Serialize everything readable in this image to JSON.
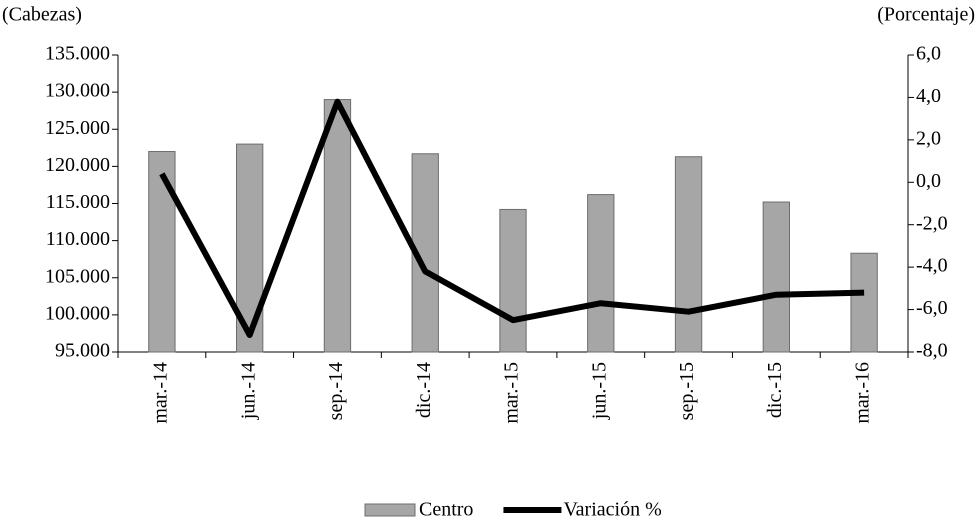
{
  "chart_data": {
    "type": "bar-line",
    "y_axis_label": "(Cabezas)",
    "y2_axis_label": "(Porcentaje)",
    "categories": [
      "mar.-14",
      "jun.-14",
      "sep.-14",
      "dic.-14",
      "mar.-15",
      "jun.-15",
      "sep.-15",
      "dic.-15",
      "mar.-16"
    ],
    "series": [
      {
        "name": "Centro",
        "type": "bar",
        "color": "#a6a6a6",
        "values": [
          122000,
          123000,
          129000,
          121700,
          114200,
          116200,
          121300,
          115200,
          108300
        ]
      },
      {
        "name": "Variación %",
        "type": "line",
        "axis": "y2",
        "color": "#000000",
        "values": [
          0.4,
          -7.2,
          3.8,
          -4.2,
          -6.5,
          -5.7,
          -6.1,
          -5.3,
          -5.2
        ]
      }
    ],
    "ylim": [
      95000,
      135000
    ],
    "yticks": [
      {
        "value": 95000,
        "label": "95.000"
      },
      {
        "value": 100000,
        "label": "100.000"
      },
      {
        "value": 105000,
        "label": "105.000"
      },
      {
        "value": 110000,
        "label": "110.000"
      },
      {
        "value": 115000,
        "label": "115.000"
      },
      {
        "value": 120000,
        "label": "120.000"
      },
      {
        "value": 125000,
        "label": "125.000"
      },
      {
        "value": 130000,
        "label": "130.000"
      },
      {
        "value": 135000,
        "label": "135.000"
      }
    ],
    "y2lim": [
      -8,
      6
    ],
    "y2ticks": [
      {
        "value": -8,
        "label": "-8,0"
      },
      {
        "value": -6,
        "label": "-6,0"
      },
      {
        "value": -4,
        "label": "-4,0"
      },
      {
        "value": -2,
        "label": "-2,0"
      },
      {
        "value": 0,
        "label": "0,0"
      },
      {
        "value": 2,
        "label": "2,0"
      },
      {
        "value": 4,
        "label": "4,0"
      },
      {
        "value": 6,
        "label": "6,0"
      }
    ]
  }
}
